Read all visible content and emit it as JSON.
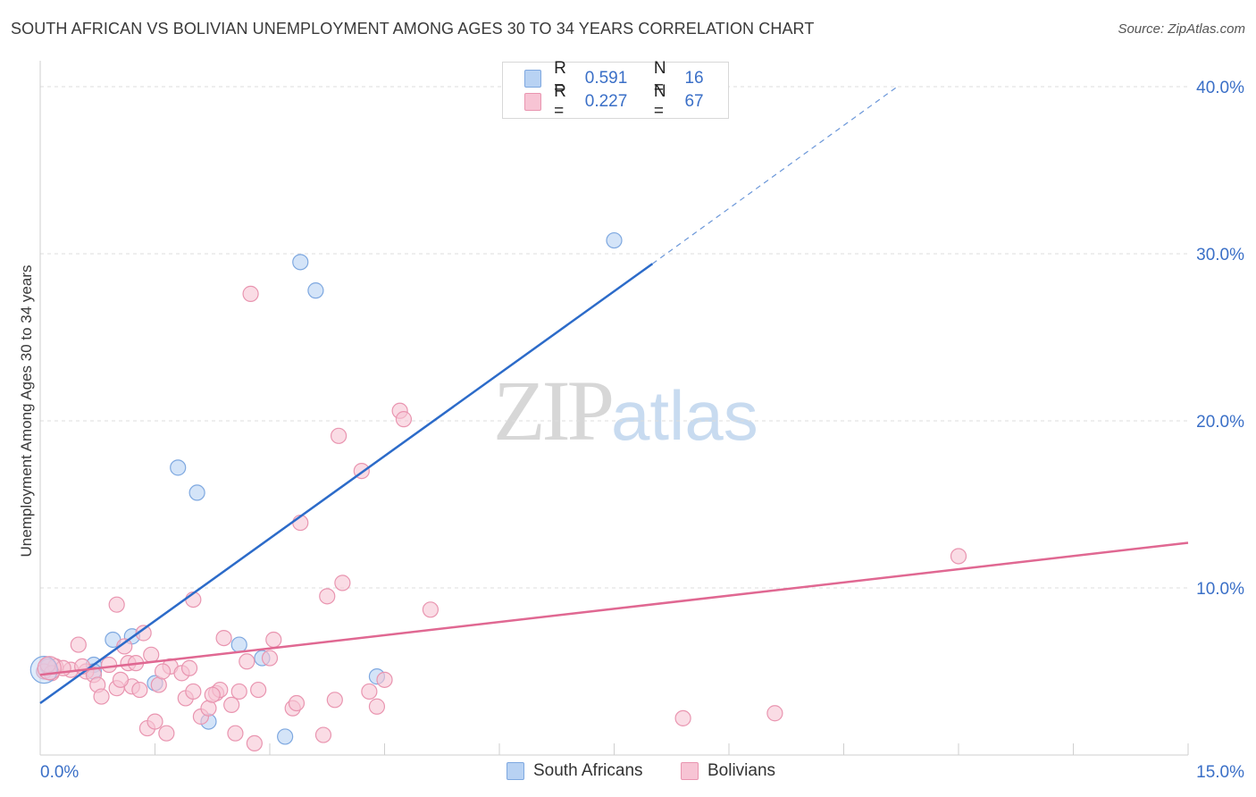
{
  "title": "SOUTH AFRICAN VS BOLIVIAN UNEMPLOYMENT AMONG AGES 30 TO 34 YEARS CORRELATION CHART",
  "source": "Source: ZipAtlas.com",
  "watermark": {
    "zip": "ZIP",
    "atlas": "atlas"
  },
  "legend": {
    "rows": [
      {
        "r_label": "R =",
        "r_value": "0.591",
        "n_label": "N =",
        "n_value": "16",
        "color": "#b8d2f3"
      },
      {
        "r_label": "R =",
        "r_value": "0.227",
        "n_label": "N =",
        "n_value": "67",
        "color": "#f7c4d4"
      }
    ]
  },
  "bottom_legend": [
    {
      "label": "South Africans",
      "color": "#b8d2f3"
    },
    {
      "label": "Bolivians",
      "color": "#f7c4d4"
    }
  ],
  "chart_data": {
    "type": "scatter",
    "title": "SOUTH AFRICAN VS BOLIVIAN UNEMPLOYMENT AMONG AGES 30 TO 34 YEARS CORRELATION CHART",
    "xlabel": "",
    "ylabel": "Unemployment Among Ages 30 to 34 years",
    "xlim": [
      0,
      15
    ],
    "ylim": [
      0,
      40
    ],
    "x_tick_labels": [
      "0.0%",
      "15.0%"
    ],
    "y_tick_labels": [
      "10.0%",
      "20.0%",
      "30.0%",
      "40.0%"
    ],
    "y_ticks": [
      10,
      20,
      30,
      40
    ],
    "series": [
      {
        "name": "South Africans",
        "color": "#7ea8e0",
        "fill": "#b8d2f3",
        "line_color": "#2c6bc9",
        "trend": {
          "x0": 0.0,
          "y0": 3.1,
          "x1": 8.0,
          "y1": 29.4,
          "dash_to_x": 11.2,
          "dash_to_y": 40.0
        },
        "points": [
          [
            0.1,
            5.3
          ],
          [
            0.7,
            5.4
          ],
          [
            0.7,
            5.0
          ],
          [
            0.95,
            6.9
          ],
          [
            1.2,
            7.1
          ],
          [
            1.5,
            4.3
          ],
          [
            1.8,
            17.2
          ],
          [
            2.05,
            15.7
          ],
          [
            2.2,
            2.0
          ],
          [
            2.6,
            6.6
          ],
          [
            2.9,
            5.8
          ],
          [
            3.2,
            1.1
          ],
          [
            3.4,
            29.5
          ],
          [
            3.6,
            27.8
          ],
          [
            4.4,
            4.7
          ],
          [
            7.5,
            30.8
          ]
        ]
      },
      {
        "name": "Bolivians",
        "color": "#e995b0",
        "fill": "#f7c4d4",
        "line_color": "#e06892",
        "trend": {
          "x0": 0.0,
          "y0": 4.8,
          "x1": 15.0,
          "y1": 12.7
        },
        "points": [
          [
            0.05,
            5.0
          ],
          [
            0.2,
            5.3
          ],
          [
            0.4,
            5.1
          ],
          [
            0.5,
            6.6
          ],
          [
            0.6,
            5.0
          ],
          [
            0.7,
            4.8
          ],
          [
            0.75,
            4.2
          ],
          [
            0.8,
            3.5
          ],
          [
            0.9,
            5.4
          ],
          [
            1.0,
            4.0
          ],
          [
            1.0,
            9.0
          ],
          [
            1.1,
            6.5
          ],
          [
            1.15,
            5.5
          ],
          [
            1.2,
            4.1
          ],
          [
            1.25,
            5.5
          ],
          [
            1.3,
            3.9
          ],
          [
            1.35,
            7.3
          ],
          [
            1.4,
            1.6
          ],
          [
            1.45,
            6.0
          ],
          [
            1.5,
            2.0
          ],
          [
            1.55,
            4.2
          ],
          [
            1.65,
            1.3
          ],
          [
            1.7,
            5.3
          ],
          [
            1.85,
            4.9
          ],
          [
            1.9,
            3.4
          ],
          [
            1.95,
            5.2
          ],
          [
            2.0,
            3.8
          ],
          [
            2.0,
            9.3
          ],
          [
            2.1,
            2.3
          ],
          [
            2.2,
            2.8
          ],
          [
            2.3,
            3.7
          ],
          [
            2.35,
            3.9
          ],
          [
            2.4,
            7.0
          ],
          [
            2.5,
            3.0
          ],
          [
            2.55,
            1.3
          ],
          [
            2.6,
            3.8
          ],
          [
            2.7,
            5.6
          ],
          [
            2.75,
            27.6
          ],
          [
            2.8,
            0.7
          ],
          [
            2.85,
            3.9
          ],
          [
            3.0,
            5.8
          ],
          [
            3.05,
            6.9
          ],
          [
            3.3,
            2.8
          ],
          [
            3.35,
            3.1
          ],
          [
            3.4,
            13.9
          ],
          [
            3.7,
            1.2
          ],
          [
            3.75,
            9.5
          ],
          [
            3.85,
            3.3
          ],
          [
            3.9,
            19.1
          ],
          [
            3.95,
            10.3
          ],
          [
            4.2,
            17.0
          ],
          [
            4.3,
            3.8
          ],
          [
            4.4,
            2.9
          ],
          [
            4.5,
            4.5
          ],
          [
            4.7,
            20.6
          ],
          [
            4.75,
            20.1
          ],
          [
            5.1,
            8.7
          ],
          [
            8.4,
            2.2
          ],
          [
            9.6,
            2.5
          ],
          [
            12.0,
            11.9
          ],
          [
            0.3,
            5.2
          ],
          [
            0.15,
            4.9
          ],
          [
            0.55,
            5.3
          ],
          [
            0.1,
            5.4
          ],
          [
            1.05,
            4.5
          ],
          [
            1.6,
            5.0
          ],
          [
            2.25,
            3.6
          ]
        ]
      }
    ],
    "grid": true,
    "legend_position": "top-center"
  }
}
